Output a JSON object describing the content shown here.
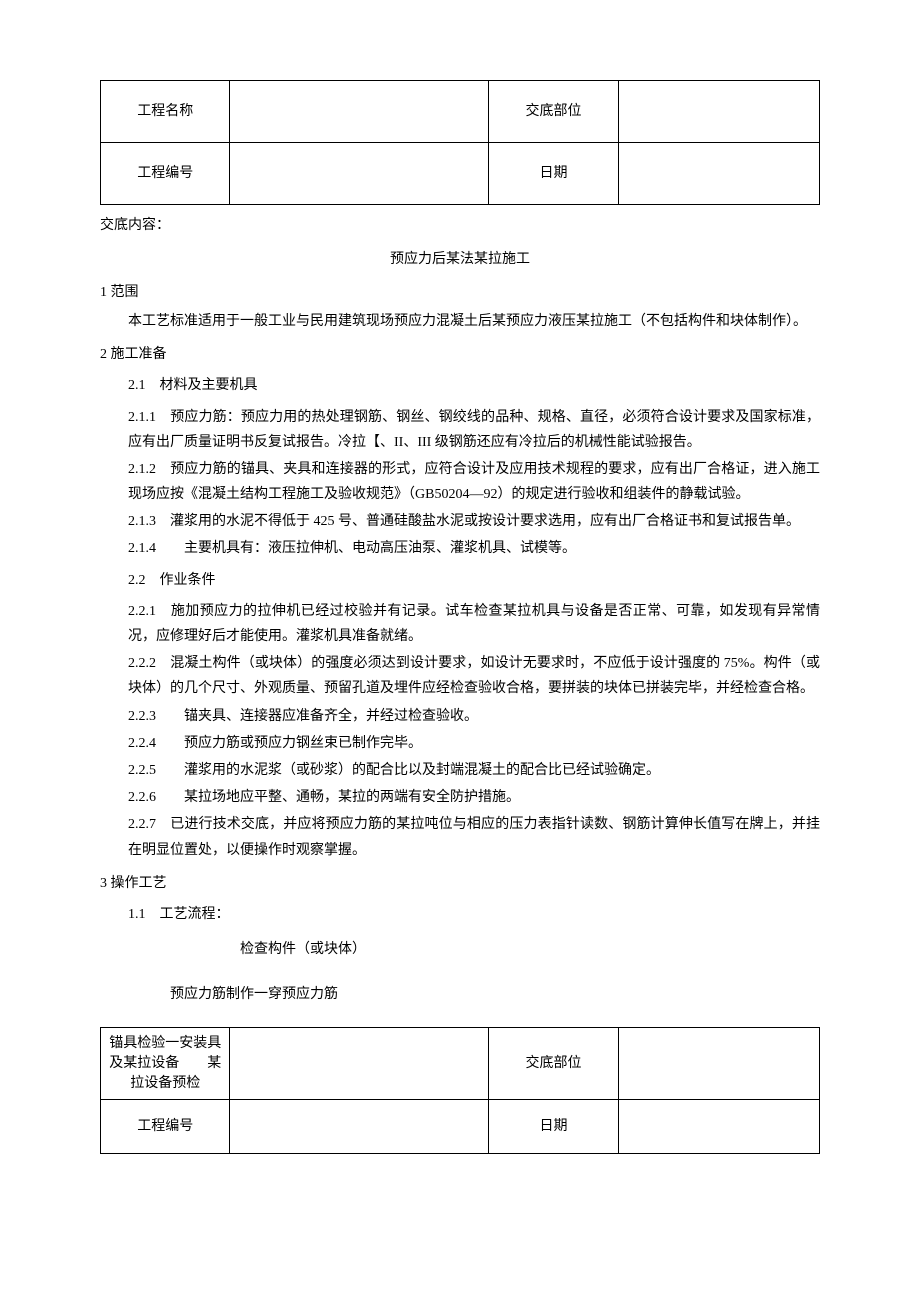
{
  "table1": {
    "r1c1": "工程名称",
    "r1c3": "交底部位",
    "r2c1": "工程编号",
    "r2c3": "日期"
  },
  "label_jiaodi": "交底内容：",
  "doc_title": "预应力后某法某拉施工",
  "s1": {
    "header": "1 范围",
    "p1": "本工艺标准适用于一般工业与民用建筑现场预应力混凝土后某预应力液压某拉施工（不包括构件和块体制作）。"
  },
  "s2": {
    "header": "2 施工准备",
    "h21": "2.1　材料及主要机具",
    "p211": "2.1.1　预应力筋：预应力用的热处理钢筋、钢丝、钢绞线的品种、规格、直径，必须符合设计要求及国家标准，应有出厂质量证明书反复试报告。冷拉【、II、III 级钢筋还应有冷拉后的机械性能试验报告。",
    "p212": "2.1.2　预应力筋的锚具、夹具和连接器的形式，应符合设计及应用技术规程的要求，应有出厂合格证，进入施工现场应按《混凝土结构工程施工及验收规范》（GB50204—92）的规定进行验收和组装件的静载试验。",
    "p213": "2.1.3　灌浆用的水泥不得低于 425 号、普通硅酸盐水泥或按设计要求选用，应有出厂合格证书和复试报告单。",
    "p214": "2.1.4　　主要机具有：液压拉伸机、电动高压油泵、灌浆机具、试模等。",
    "h22": "2.2　作业条件",
    "p221": "2.2.1　施加预应力的拉伸机已经过校验并有记录。试车检查某拉机具与设备是否正常、可靠，如发现有异常情况，应修理好后才能使用。灌浆机具准备就绪。",
    "p222": "2.2.2　混凝土构件（或块体）的强度必须达到设计要求，如设计无要求时，不应低于设计强度的 75%。构件（或块体）的几个尺寸、外观质量、预留孔道及埋件应经检查验收合格，要拼装的块体已拼装完毕，并经检查合格。",
    "p223": "2.2.3　　锚夹具、连接器应准备齐全，并经过检查验收。",
    "p224": "2.2.4　　预应力筋或预应力钢丝束已制作完毕。",
    "p225": "2.2.5　　灌浆用的水泥浆（或砂浆）的配合比以及封端混凝土的配合比已经试验确定。",
    "p226": "2.2.6　　某拉场地应平整、通畅，某拉的两端有安全防护措施。",
    "p227": "2.2.7　已进行技术交底，并应将预应力筋的某拉吨位与相应的压力表指针读数、钢筋计算伸长值写在牌上，并挂在明显位置处，以便操作时观察掌握。"
  },
  "s3": {
    "header": "3 操作工艺",
    "h11": "1.1　工艺流程：",
    "flow1": "检查构件（或块体）",
    "flow2": "预应力筋制作一穿预应力筋"
  },
  "table2": {
    "r1c1": "锚具检验一安装具及某拉设备　　某拉设备预检",
    "r1c3": "交底部位",
    "r2c1": "工程编号",
    "r2c3": "日期"
  }
}
